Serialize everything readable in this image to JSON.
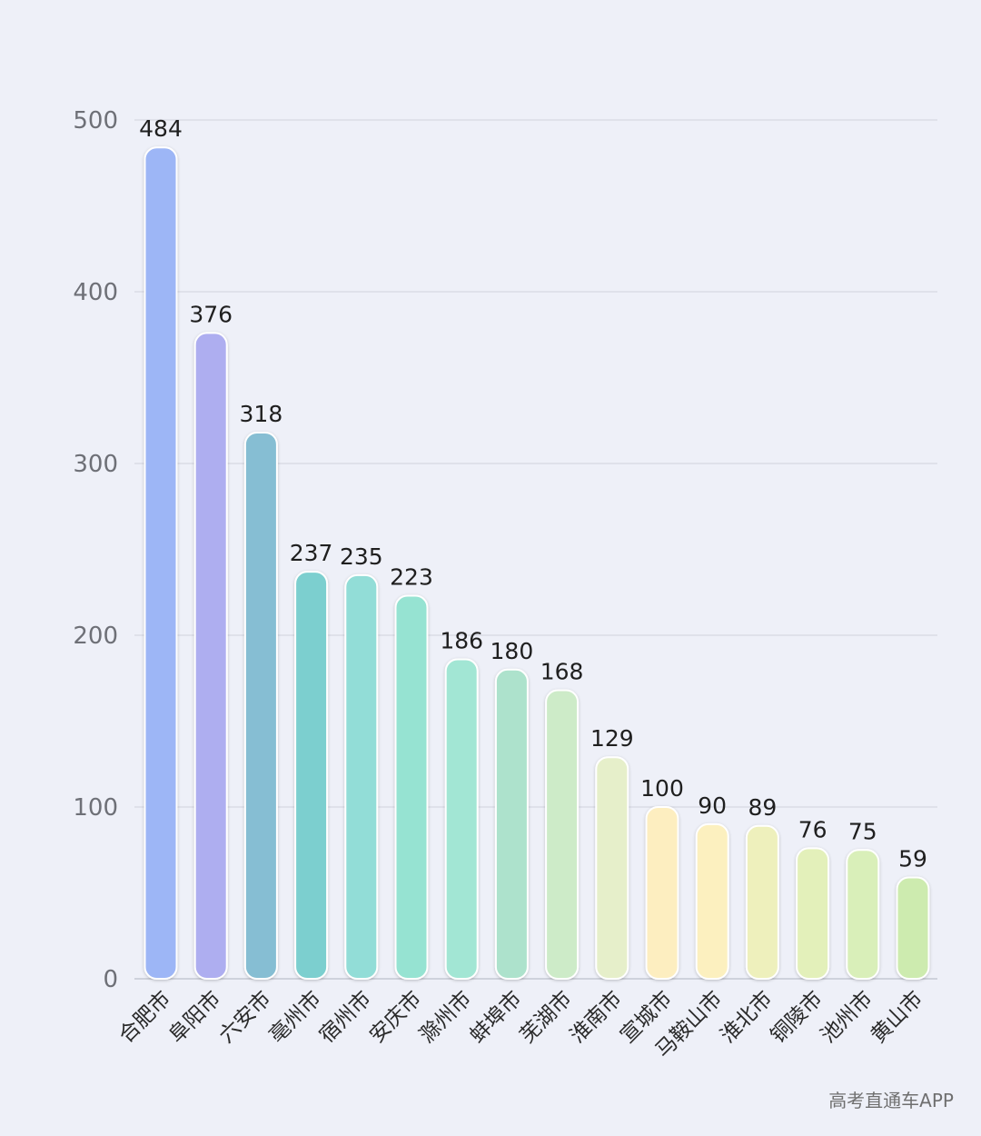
{
  "chart_data": {
    "type": "bar",
    "categories": [
      "合肥市",
      "阜阳市",
      "六安市",
      "亳州市",
      "宿州市",
      "安庆市",
      "滁州市",
      "蚌埠市",
      "芜湖市",
      "淮南市",
      "宣城市",
      "马鞍山市",
      "淮北市",
      "铜陵市",
      "池州市",
      "黄山市"
    ],
    "values": [
      484,
      376,
      318,
      237,
      235,
      223,
      186,
      180,
      168,
      129,
      100,
      90,
      89,
      76,
      75,
      59
    ],
    "title": "",
    "xlabel": "",
    "ylabel": "",
    "ylim": [
      0,
      500
    ],
    "yticks": [
      0,
      100,
      200,
      300,
      400,
      500
    ],
    "grid": true,
    "data_labels": true,
    "bar_colors": [
      "#9db6f6",
      "#aeaef0",
      "#86bed3",
      "#7ccfcf",
      "#92ddd7",
      "#96e3d2",
      "#a2e6d4",
      "#ade2cc",
      "#cdebc8",
      "#e6efca",
      "#fdeec0",
      "#fcf0bf",
      "#eef0bc",
      "#e3f0ba",
      "#d9efb9",
      "#cdebaf"
    ]
  },
  "watermark": "高考直通车APP"
}
